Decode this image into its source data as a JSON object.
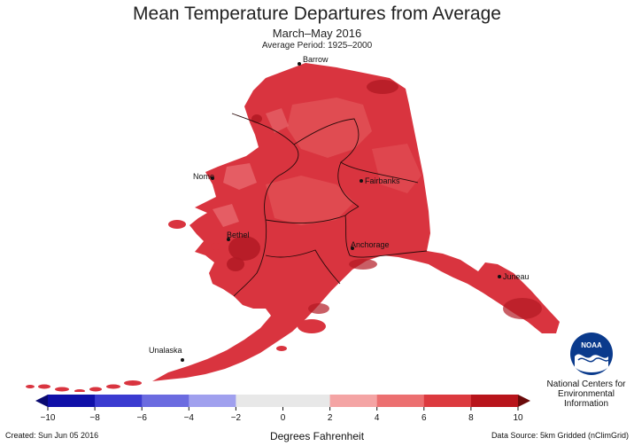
{
  "header": {
    "title": "Mean Temperature Departures from Average",
    "subtitle": "March–May 2016",
    "average_period": "Average Period: 1925–2000"
  },
  "cities": [
    {
      "name": "Barrow",
      "id": "barrow"
    },
    {
      "name": "Nome",
      "id": "nome"
    },
    {
      "name": "Fairbanks",
      "id": "fairbanks"
    },
    {
      "name": "Bethel",
      "id": "bethel"
    },
    {
      "name": "Anchorage",
      "id": "anchorage"
    },
    {
      "name": "Juneau",
      "id": "juneau"
    },
    {
      "name": "Unalaska",
      "id": "unalaska"
    }
  ],
  "colors": {
    "land_base": "#d9343f",
    "land_warmest": "#b21a24",
    "land_lighter": "#e25459",
    "land_lightest": "#ec7a7d",
    "division_lines": "#2a0a0a"
  },
  "legend": {
    "ticks": [
      "−10",
      "−8",
      "−6",
      "−4",
      "−2",
      "0",
      "2",
      "4",
      "6",
      "8",
      "10"
    ],
    "colors": [
      "#1010a8",
      "#3b3bd0",
      "#6b6be0",
      "#a0a0ee",
      "#e8e8e8",
      "#e8e8e8",
      "#f4a4a4",
      "#ec6f70",
      "#dc3a3f",
      "#b8141b"
    ],
    "units": "Degrees Fahrenheit"
  },
  "logo": {
    "name": "NOAA",
    "org_line1": "National Centers for",
    "org_line2": "Environmental",
    "org_line3": "Information"
  },
  "footer": {
    "created": "Created: Sun Jun 05 2016",
    "source": "Data Source: 5km Gridded (nClimGrid)"
  }
}
